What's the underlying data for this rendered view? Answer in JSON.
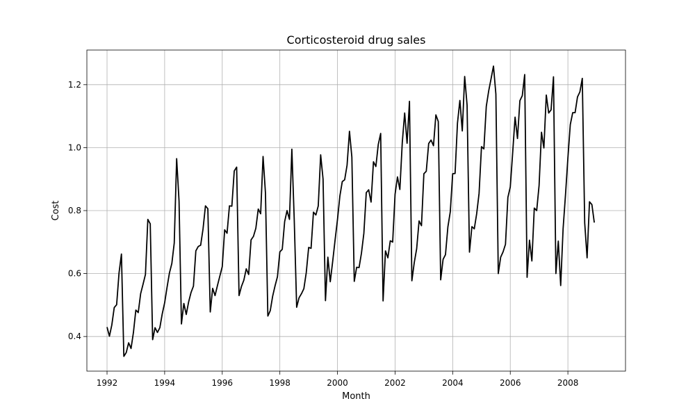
{
  "chart_data": {
    "type": "line",
    "title": "Corticosteroid drug sales",
    "xlabel": "Month",
    "ylabel": "Cost",
    "xlim": [
      1991.3,
      2010.0
    ],
    "ylim": [
      0.29,
      1.31
    ],
    "xticks": [
      1992,
      1994,
      1996,
      1998,
      2000,
      2002,
      2004,
      2006,
      2008
    ],
    "xtick_labels": [
      "1992",
      "1994",
      "1996",
      "1998",
      "2000",
      "2002",
      "2004",
      "2006",
      "2008"
    ],
    "yticks": [
      0.4,
      0.6,
      0.8,
      1.0,
      1.2
    ],
    "ytick_labels": [
      "0.4",
      "0.6",
      "0.8",
      "1.0",
      "1.2"
    ],
    "grid": true,
    "line_color": "#000000",
    "x_start": 1992.0,
    "x_step": 0.083333,
    "series": [
      {
        "values": [
          0.43,
          0.401,
          0.437,
          0.492,
          0.501,
          0.602,
          0.662,
          0.337,
          0.349,
          0.38,
          0.362,
          0.413,
          0.484,
          0.476,
          0.536,
          0.566,
          0.597,
          0.772,
          0.758,
          0.39,
          0.428,
          0.413,
          0.428,
          0.472,
          0.507,
          0.556,
          0.602,
          0.632,
          0.697,
          0.965,
          0.83,
          0.44,
          0.505,
          0.47,
          0.51,
          0.54,
          0.56,
          0.672,
          0.686,
          0.69,
          0.742,
          0.815,
          0.806,
          0.478,
          0.553,
          0.53,
          0.562,
          0.592,
          0.622,
          0.739,
          0.728,
          0.815,
          0.814,
          0.926,
          0.938,
          0.53,
          0.559,
          0.579,
          0.615,
          0.597,
          0.707,
          0.718,
          0.744,
          0.805,
          0.79,
          0.972,
          0.856,
          0.465,
          0.482,
          0.528,
          0.561,
          0.59,
          0.669,
          0.677,
          0.765,
          0.8,
          0.772,
          0.995,
          0.769,
          0.493,
          0.523,
          0.536,
          0.552,
          0.603,
          0.683,
          0.68,
          0.795,
          0.786,
          0.815,
          0.977,
          0.9,
          0.514,
          0.652,
          0.574,
          0.638,
          0.706,
          0.771,
          0.846,
          0.892,
          0.898,
          0.944,
          1.052,
          0.97,
          0.575,
          0.62,
          0.619,
          0.665,
          0.728,
          0.857,
          0.866,
          0.827,
          0.955,
          0.94,
          1.01,
          1.045,
          0.513,
          0.672,
          0.65,
          0.704,
          0.7,
          0.852,
          0.907,
          0.867,
          1.016,
          1.11,
          1.014,
          1.147,
          0.577,
          0.635,
          0.679,
          0.767,
          0.752,
          0.917,
          0.925,
          1.013,
          1.024,
          1.006,
          1.104,
          1.083,
          0.58,
          0.645,
          0.66,
          0.748,
          0.796,
          0.917,
          0.918,
          1.078,
          1.15,
          1.053,
          1.226,
          1.135,
          0.668,
          0.749,
          0.742,
          0.79,
          0.855,
          1.003,
          0.996,
          1.131,
          1.18,
          1.219,
          1.259,
          1.17,
          0.6,
          0.652,
          0.669,
          0.693,
          0.842,
          0.875,
          0.984,
          1.097,
          1.029,
          1.149,
          1.165,
          1.232,
          0.588,
          0.706,
          0.64,
          0.808,
          0.8,
          0.88,
          1.049,
          0.999,
          1.167,
          1.11,
          1.12,
          1.225,
          0.6,
          0.703,
          0.562,
          0.742,
          0.85,
          0.967,
          1.073,
          1.111,
          1.111,
          1.161,
          1.177,
          1.22,
          0.761,
          0.65,
          0.828,
          0.819,
          0.762
        ]
      }
    ]
  }
}
